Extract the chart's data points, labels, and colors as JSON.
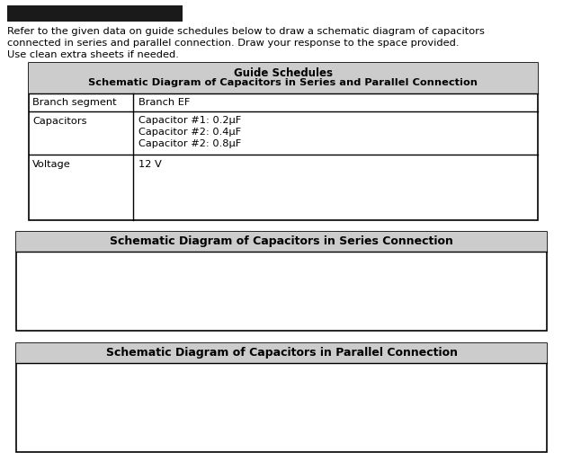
{
  "bg_color": "#ffffff",
  "redacted_bar_color": "#1a1a1a",
  "text_color": "#000000",
  "header_bg": "#cccccc",
  "intro_text_lines": [
    "Refer to the given data on guide schedules below to draw a schematic diagram of capacitors",
    "connected in series and parallel connection. Draw your response to the space provided.",
    "Use clean extra sheets if needed."
  ],
  "guide_title_line1": "Guide Schedules",
  "guide_title_line2": "Schematic Diagram of Capacitors in Series and Parallel Connection",
  "col1_row1": "Branch segment",
  "col2_row1": "Branch EF",
  "col1_row2": "Capacitors",
  "col2_row2_lines": [
    "Capacitor #1: 0.2μF",
    "Capacitor #2: 0.4μF",
    "Capacitor #2: 0.8μF"
  ],
  "col1_row3": "Voltage",
  "col2_row3": "12 V",
  "series_title": "Schematic Diagram of Capacitors in Series Connection",
  "parallel_title": "Schematic Diagram of Capacitors in Parallel Connection",
  "font_size_intro": 8.2,
  "font_size_table_bold": 8.5,
  "font_size_table": 8.2,
  "font_size_section": 9.0
}
